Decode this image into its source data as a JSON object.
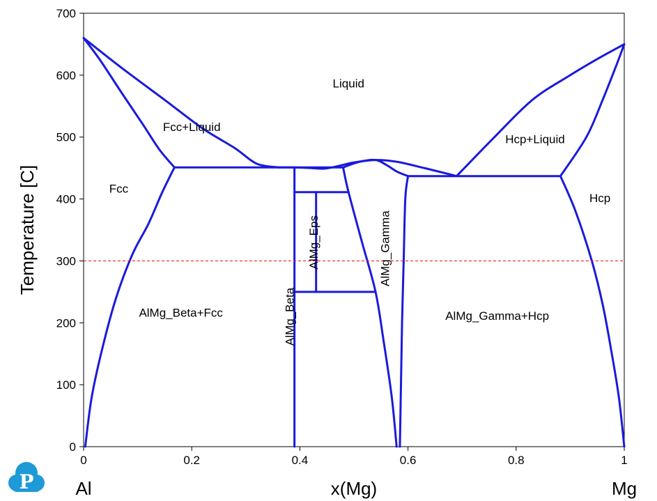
{
  "chart_data": {
    "type": "line",
    "xlabel": "x(Mg)",
    "ylabel": "Temperature [C]",
    "xlim": [
      0,
      1
    ],
    "ylim": [
      0,
      700
    ],
    "x_ticks": [
      "0",
      "0.2",
      "0.4",
      "0.6",
      "0.8",
      "1"
    ],
    "y_ticks": [
      "0",
      "100",
      "200",
      "300",
      "400",
      "500",
      "600",
      "700"
    ],
    "left_endpoint": "Al",
    "right_endpoint": "Mg",
    "grid": false,
    "line_color": "#1a1adb",
    "reference_line": {
      "y": 300,
      "color": "#e8251f",
      "style": "dashed"
    },
    "regions": [
      {
        "label": "Liquid",
        "x": 0.49,
        "y": 585,
        "rotate": 0
      },
      {
        "label": "Fcc+Liquid",
        "x": 0.2,
        "y": 515,
        "rotate": 0
      },
      {
        "label": "Fcc",
        "x": 0.065,
        "y": 415,
        "rotate": 0
      },
      {
        "label": "Hcp+Liquid",
        "x": 0.835,
        "y": 495,
        "rotate": 0
      },
      {
        "label": "Hcp",
        "x": 0.955,
        "y": 400,
        "rotate": 0
      },
      {
        "label": "AlMg_Beta+Fcc",
        "x": 0.18,
        "y": 215,
        "rotate": 0
      },
      {
        "label": "AlMg_Gamma+Hcp",
        "x": 0.765,
        "y": 210,
        "rotate": 0
      },
      {
        "label": "AlMg_Beta",
        "x": 0.383,
        "y": 210,
        "rotate": -90
      },
      {
        "label": "AlMg_Eps",
        "x": 0.427,
        "y": 330,
        "rotate": -90
      },
      {
        "label": "AlMg_Gamma",
        "x": 0.559,
        "y": 320,
        "rotate": -90
      }
    ],
    "series": [
      {
        "points": [
          [
            0.0,
            660
          ],
          [
            0.07,
            612
          ],
          [
            0.15,
            560
          ],
          [
            0.22,
            514
          ],
          [
            0.28,
            482
          ],
          [
            0.32,
            457
          ],
          [
            0.36,
            451
          ]
        ]
      },
      {
        "points": [
          [
            0.0,
            660
          ],
          [
            0.03,
            625
          ],
          [
            0.07,
            572
          ],
          [
            0.11,
            520
          ],
          [
            0.14,
            480
          ],
          [
            0.168,
            451
          ]
        ]
      },
      {
        "points": [
          [
            0.168,
            451
          ],
          [
            0.145,
            410
          ],
          [
            0.12,
            360
          ],
          [
            0.09,
            310
          ],
          [
            0.06,
            240
          ],
          [
            0.035,
            160
          ],
          [
            0.015,
            80
          ],
          [
            0.003,
            0
          ]
        ]
      },
      {
        "points": [
          [
            0.168,
            451
          ],
          [
            0.48,
            451
          ]
        ]
      },
      {
        "points": [
          [
            0.36,
            451
          ],
          [
            0.39,
            451
          ],
          [
            0.42,
            450
          ],
          [
            0.445,
            449
          ],
          [
            0.47,
            453
          ],
          [
            0.5,
            459
          ],
          [
            0.54,
            463
          ],
          [
            0.58,
            460
          ],
          [
            0.63,
            450
          ],
          [
            0.69,
            437
          ]
        ]
      },
      {
        "points": [
          [
            0.39,
            451
          ],
          [
            0.39,
            0
          ]
        ]
      },
      {
        "points": [
          [
            0.39,
            411
          ],
          [
            0.49,
            411
          ]
        ]
      },
      {
        "points": [
          [
            0.43,
            411
          ],
          [
            0.43,
            250
          ]
        ]
      },
      {
        "points": [
          [
            0.39,
            250
          ],
          [
            0.54,
            250
          ]
        ]
      },
      {
        "points": [
          [
            0.48,
            451
          ],
          [
            0.49,
            411
          ],
          [
            0.515,
            330
          ],
          [
            0.54,
            250
          ],
          [
            0.555,
            170
          ],
          [
            0.57,
            80
          ],
          [
            0.579,
            0
          ]
        ]
      },
      {
        "points": [
          [
            0.48,
            451
          ],
          [
            0.51,
            460
          ],
          [
            0.54,
            463
          ],
          [
            0.56,
            455
          ],
          [
            0.58,
            444
          ],
          [
            0.6,
            437
          ]
        ]
      },
      {
        "points": [
          [
            0.6,
            437
          ],
          [
            0.595,
            400
          ],
          [
            0.592,
            300
          ],
          [
            0.589,
            200
          ],
          [
            0.587,
            100
          ],
          [
            0.585,
            0
          ]
        ]
      },
      {
        "points": [
          [
            0.6,
            437
          ],
          [
            0.882,
            437
          ]
        ]
      },
      {
        "points": [
          [
            0.69,
            437
          ],
          [
            0.76,
            500
          ],
          [
            0.83,
            560
          ],
          [
            0.9,
            600
          ],
          [
            0.95,
            626
          ],
          [
            1.0,
            650
          ]
        ]
      },
      {
        "points": [
          [
            0.882,
            437
          ],
          [
            0.93,
            500
          ],
          [
            0.96,
            560
          ],
          [
            0.985,
            615
          ],
          [
            1.0,
            650
          ]
        ]
      },
      {
        "points": [
          [
            0.882,
            437
          ],
          [
            0.91,
            380
          ],
          [
            0.94,
            300
          ],
          [
            0.96,
            230
          ],
          [
            0.975,
            160
          ],
          [
            0.99,
            80
          ],
          [
            1.0,
            0
          ]
        ]
      }
    ]
  }
}
